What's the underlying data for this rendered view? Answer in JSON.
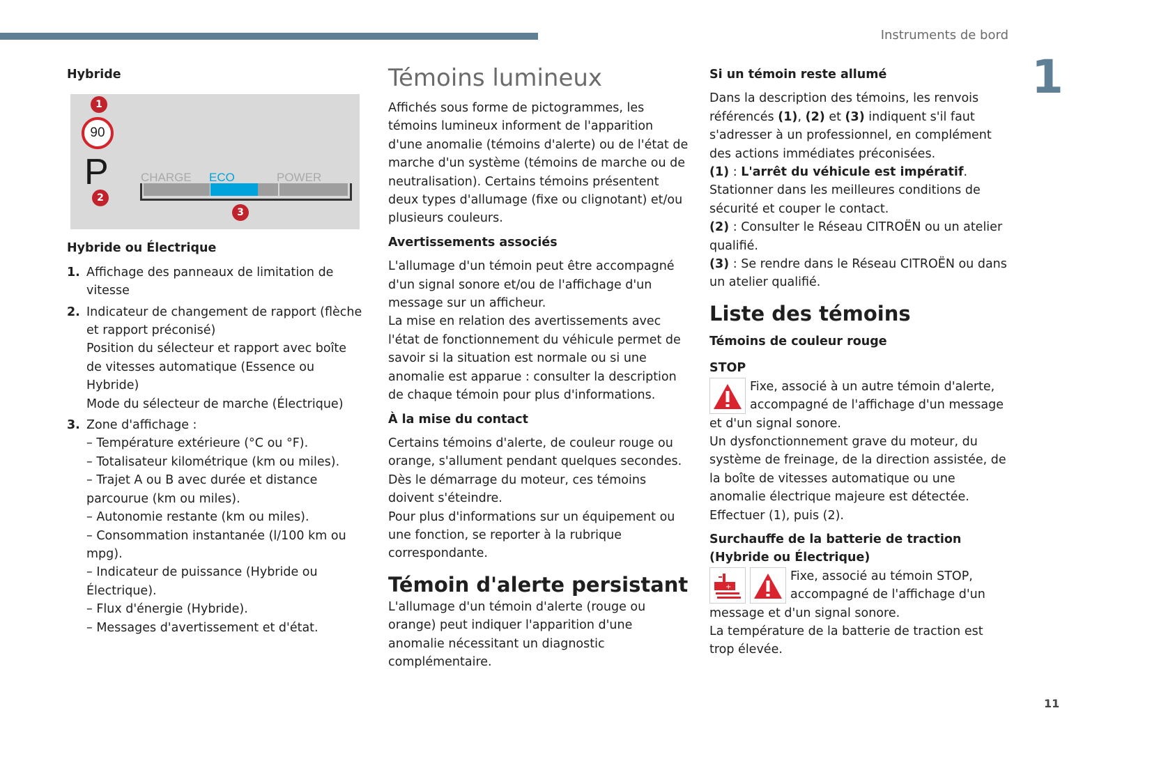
{
  "header": {
    "running_title": "Instruments de bord",
    "chapter_number": "1",
    "page_number": "11",
    "accent_color": "#5f7f95"
  },
  "col1": {
    "heading": "Hybride",
    "figure": {
      "callouts": [
        "1",
        "2",
        "3"
      ],
      "speed_limit": "90",
      "gear": "P",
      "power_labels": [
        "CHARGE",
        "ECO",
        "POWER"
      ],
      "eco_color": "#00a3dc"
    },
    "subheading": "Hybride ou Électrique",
    "items": [
      {
        "num": "1.",
        "lines": [
          "Affichage des panneaux de limitation de vitesse"
        ]
      },
      {
        "num": "2.",
        "lines": [
          "Indicateur de changement de rapport (flèche et rapport préconisé)",
          "Position du sélecteur et rapport avec boîte de vitesses automatique (Essence ou Hybride)",
          "Mode du sélecteur de marche (Électrique)"
        ]
      },
      {
        "num": "3.",
        "lines": [
          "Zone d'affichage :"
        ]
      }
    ],
    "subitems": [
      "– Température extérieure (°C ou °F).",
      "– Totalisateur kilométrique (km ou miles).",
      "– Trajet A ou B avec durée et distance parcourue (km ou miles).",
      "– Autonomie restante (km ou miles).",
      "– Consommation instantanée (l/100 km ou mpg).",
      "– Indicateur de puissance (Hybride ou Électrique).",
      "– Flux d'énergie (Hybride).",
      "– Messages d'avertissement et d'état."
    ]
  },
  "col2": {
    "title": "Témoins lumineux",
    "intro": "Affichés sous forme de pictogrammes, les témoins lumineux informent de l'apparition d'une anomalie (témoins d'alerte) ou de l'état de marche d'un système (témoins de marche ou de neutralisation). Certains témoins présentent deux types d'allumage (fixe ou clignotant) et/ou plusieurs couleurs.",
    "h_avert": "Avertissements associés",
    "avert_p1": "L'allumage d'un témoin peut être accompagné d'un signal sonore et/ou de l'affichage d'un message sur un afficheur.",
    "avert_p2": "La mise en relation des avertissements avec l'état de fonctionnement du véhicule permet de savoir si la situation est normale ou si une anomalie est apparue : consulter la description de chaque témoin pour plus d'informations.",
    "h_contact": "À la mise du contact",
    "contact_p1": "Certains témoins d'alerte, de couleur rouge ou orange, s'allument pendant quelques secondes. Dès le démarrage du moteur, ces témoins doivent s'éteindre.",
    "contact_p2": "Pour plus d'informations sur un équipement ou une fonction, se reporter à la rubrique correspondante.",
    "h_persist": "Témoin d'alerte persistant",
    "persist_p": "L'allumage d'un témoin d'alerte (rouge ou orange) peut indiquer l'apparition d'une anomalie nécessitant un diagnostic complémentaire."
  },
  "col3": {
    "h_allume": "Si un témoin reste allumé",
    "desc": {
      "a": "Dans la description des témoins, les renvois référencés ",
      "r1": "(1)",
      "b": ", ",
      "r2": "(2)",
      "c": " et ",
      "r3": "(3)",
      "d": " indiquent s'il faut s'adresser à un professionnel, en complément des actions immédiates préconisées."
    },
    "ref1": {
      "label": "(1)",
      "sep": " : ",
      "bold": "L'arrêt du véhicule est impératif",
      "end": ".",
      "text": "Stationner dans les meilleures conditions de sécurité et couper le contact."
    },
    "ref2": {
      "label": "(2)",
      "text": " : Consulter le Réseau CITROËN ou un atelier qualifié."
    },
    "ref3": {
      "label": "(3)",
      "text": " : Se rendre dans le Réseau CITROËN ou dans un atelier qualifié."
    },
    "h_liste": "Liste des témoins",
    "h_rouge": "Témoins de couleur rouge",
    "stop": {
      "title": "STOP",
      "icon": "warning-triangle-icon",
      "p1": "Fixe, associé à un autre témoin d'alerte, accompagné de l'affichage d'un message et d'un signal sonore.",
      "p2": "Un dysfonctionnement grave du moteur, du système de freinage, de la direction assistée, de la boîte de vitesses automatique ou une anomalie électrique majeure est détectée.",
      "p3": "Effectuer (1), puis (2)."
    },
    "battery": {
      "title": "Surchauffe de la batterie de traction (Hybride ou Électrique)",
      "icons": [
        "battery-temperature-icon",
        "warning-triangle-icon"
      ],
      "p1": "Fixe, associé au témoin STOP, accompagné de l'affichage d'un message et d'un signal sonore.",
      "p2": "La température de la batterie de traction est trop élevée."
    },
    "warning_color": "#d9232e"
  }
}
